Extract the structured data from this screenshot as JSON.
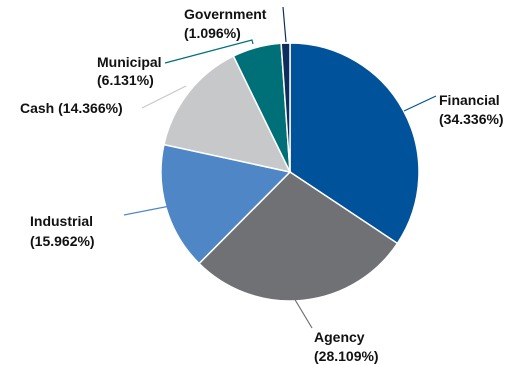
{
  "chart_data": {
    "type": "pie",
    "title": "",
    "start_angle_deg": 0,
    "direction": "clockwise",
    "slices": [
      {
        "label": "Financial",
        "value": 34.336,
        "display": "(34.336%)",
        "color": "#00529B"
      },
      {
        "label": "Agency",
        "value": 28.109,
        "display": "(28.109%)",
        "color": "#707175"
      },
      {
        "label": "Industrial",
        "value": 15.962,
        "display": "(15.962%)",
        "color": "#4F86C6"
      },
      {
        "label": "Cash",
        "value": 14.366,
        "display": "(14.366%)",
        "color": "#C7C8CA"
      },
      {
        "label": "Municipal",
        "value": 6.131,
        "display": "(6.131%)",
        "color": "#007078"
      },
      {
        "label": "Government",
        "value": 1.096,
        "display": "(1.096%)",
        "color": "#0D2E5C"
      }
    ],
    "legend": "none",
    "slice_border_color": "#ffffff"
  }
}
